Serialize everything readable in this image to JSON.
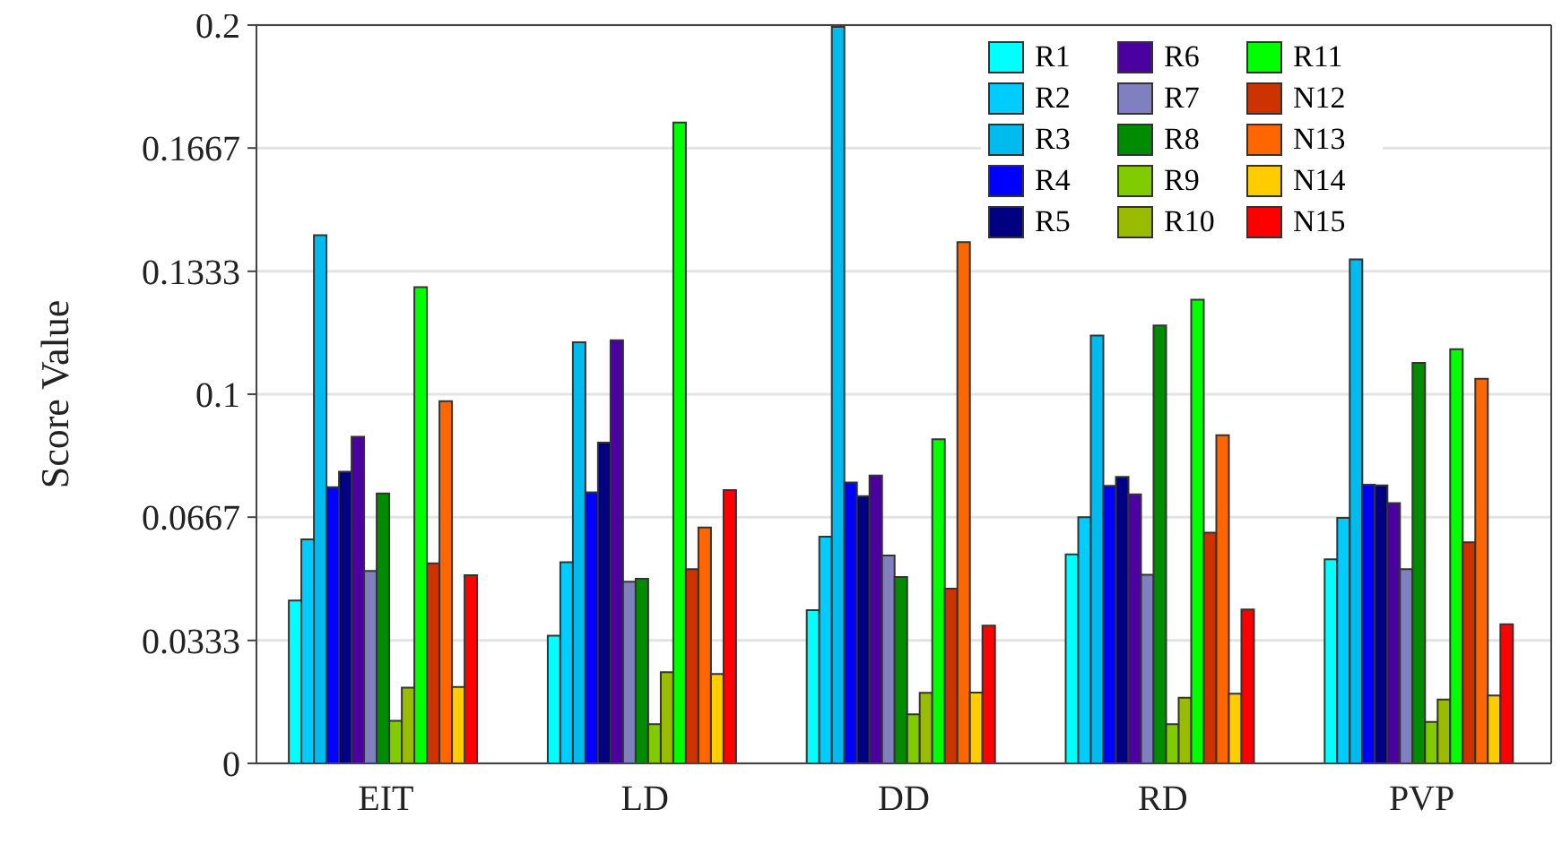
{
  "chart_data": {
    "type": "bar",
    "ylabel": "Score Value",
    "categories": [
      "EIT",
      "LD",
      "DD",
      "RD",
      "PVP"
    ],
    "series": [
      {
        "name": "R1",
        "color": "#00ffff",
        "values": [
          0.0441,
          0.0346,
          0.0415,
          0.0566,
          0.0553
        ]
      },
      {
        "name": "R2",
        "color": "#00ccff",
        "values": [
          0.0607,
          0.0545,
          0.0614,
          0.0667,
          0.0665
        ]
      },
      {
        "name": "R3",
        "color": "#00bbee",
        "values": [
          0.1431,
          0.1141,
          0.1995,
          0.1159,
          0.1365
        ]
      },
      {
        "name": "R4",
        "color": "#0000ff",
        "values": [
          0.0748,
          0.0734,
          0.0761,
          0.0752,
          0.0755
        ]
      },
      {
        "name": "R5",
        "color": "#000080",
        "values": [
          0.079,
          0.0869,
          0.0724,
          0.0776,
          0.0753
        ]
      },
      {
        "name": "R6",
        "color": "#4b00a0",
        "values": [
          0.0885,
          0.1146,
          0.078,
          0.0729,
          0.0705
        ]
      },
      {
        "name": "R7",
        "color": "#8080c0",
        "values": [
          0.0521,
          0.0492,
          0.0563,
          0.0511,
          0.0526
        ]
      },
      {
        "name": "R8",
        "color": "#008c00",
        "values": [
          0.0731,
          0.05,
          0.0505,
          0.1186,
          0.1085
        ]
      },
      {
        "name": "R9",
        "color": "#80cc00",
        "values": [
          0.0115,
          0.0106,
          0.0133,
          0.0106,
          0.0112
        ]
      },
      {
        "name": "R10",
        "color": "#99bb00",
        "values": [
          0.0205,
          0.0247,
          0.0191,
          0.0178,
          0.0173
        ]
      },
      {
        "name": "R11",
        "color": "#00ff00",
        "values": [
          0.129,
          0.1736,
          0.0878,
          0.1256,
          0.1122
        ]
      },
      {
        "name": "N12",
        "color": "#cc3300",
        "values": [
          0.0542,
          0.0526,
          0.0473,
          0.0625,
          0.0599
        ]
      },
      {
        "name": "N13",
        "color": "#ff6600",
        "values": [
          0.0981,
          0.0639,
          0.1412,
          0.0889,
          0.1042
        ]
      },
      {
        "name": "N14",
        "color": "#ffcc00",
        "values": [
          0.0207,
          0.0242,
          0.0192,
          0.0189,
          0.0184
        ]
      },
      {
        "name": "N15",
        "color": "#ff0000",
        "values": [
          0.051,
          0.074,
          0.0373,
          0.0417,
          0.0377
        ]
      }
    ],
    "ylim": [
      0,
      0.2
    ],
    "yticks": [
      0,
      0.0333,
      0.0667,
      0.1,
      0.1333,
      0.1667,
      0.2
    ],
    "grid": "y",
    "legend": "top right"
  }
}
